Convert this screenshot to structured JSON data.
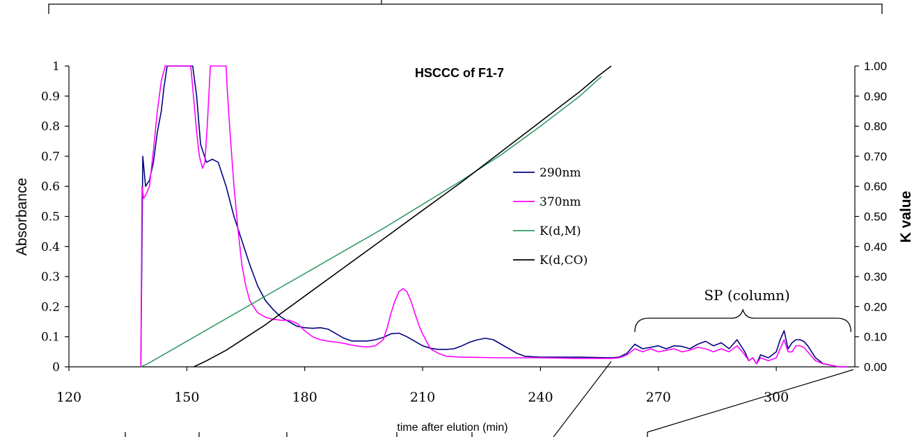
{
  "chart_data": {
    "type": "line",
    "title": "HSCCC of F1-7",
    "xlabel": "time after elution (min)",
    "ylabel": "Absorbance",
    "y2label": "K value",
    "xlim": [
      120,
      320
    ],
    "ylim": [
      0,
      1
    ],
    "y2lim": [
      0,
      1
    ],
    "x_ticks": [
      "120",
      "150",
      "180",
      "210",
      "240",
      "270",
      "300"
    ],
    "y_ticks": [
      "0",
      "0.1",
      "0.2",
      "0.3",
      "0.4",
      "0.5",
      "0.6",
      "0.7",
      "0.8",
      "0.9",
      "1"
    ],
    "y2_ticks": [
      "0.00",
      "0.10",
      "0.20",
      "0.30",
      "0.40",
      "0.50",
      "0.60",
      "0.70",
      "0.80",
      "0.90",
      "1.00"
    ],
    "legend_position": "center-right",
    "grid": false,
    "annotation": "SP (column)",
    "annotation_range": [
      264,
      319
    ],
    "series": [
      {
        "name": "290nm",
        "color": "#000080",
        "axis": "left",
        "x": [
          138.3,
          138.8,
          139.5,
          140.5,
          141.5,
          142.5,
          143.5,
          144.2,
          145,
          146,
          148,
          150,
          150.8,
          151.5,
          152.5,
          153.5,
          155,
          156.5,
          158,
          160,
          162,
          164,
          166,
          168,
          170,
          172,
          174,
          176,
          178,
          180,
          182,
          184,
          186,
          188,
          190,
          192,
          194,
          196,
          198,
          200,
          202,
          204,
          206,
          208,
          210,
          212,
          214,
          216,
          218,
          220,
          222,
          224,
          226,
          228,
          230,
          232,
          234,
          236,
          240,
          250,
          258,
          260,
          262,
          264,
          266,
          268,
          270,
          272,
          274,
          276,
          278,
          280,
          282,
          284,
          286,
          288,
          290,
          292,
          293,
          294,
          295,
          296,
          298,
          300,
          301,
          302,
          303,
          304,
          305,
          306,
          307,
          308,
          310,
          312,
          314,
          316,
          318
        ],
        "y": [
          0.0,
          0.7,
          0.6,
          0.62,
          0.68,
          0.78,
          0.85,
          0.93,
          1.0,
          1.0,
          1.0,
          1.0,
          1.0,
          1.0,
          0.9,
          0.74,
          0.68,
          0.69,
          0.68,
          0.6,
          0.5,
          0.42,
          0.34,
          0.27,
          0.22,
          0.19,
          0.165,
          0.15,
          0.135,
          0.13,
          0.128,
          0.13,
          0.125,
          0.11,
          0.095,
          0.086,
          0.086,
          0.086,
          0.09,
          0.098,
          0.11,
          0.112,
          0.1,
          0.085,
          0.07,
          0.062,
          0.058,
          0.058,
          0.06,
          0.07,
          0.082,
          0.09,
          0.095,
          0.09,
          0.075,
          0.06,
          0.045,
          0.035,
          0.032,
          0.032,
          0.03,
          0.032,
          0.045,
          0.075,
          0.06,
          0.065,
          0.07,
          0.06,
          0.07,
          0.068,
          0.06,
          0.075,
          0.085,
          0.07,
          0.08,
          0.06,
          0.09,
          0.05,
          0.02,
          0.03,
          0.01,
          0.04,
          0.03,
          0.05,
          0.09,
          0.12,
          0.06,
          0.08,
          0.09,
          0.09,
          0.085,
          0.07,
          0.03,
          0.01,
          0.005,
          0.0,
          0.0
        ]
      },
      {
        "name": "370nm",
        "color": "#ff00ff",
        "axis": "left",
        "x": [
          138.3,
          138.6,
          139,
          139.5,
          140.5,
          141.5,
          142.5,
          143.5,
          144.5,
          145.5,
          147,
          150,
          151,
          151.7,
          152.5,
          153.2,
          154,
          154.6,
          155.2,
          156,
          157,
          158.5,
          160,
          160.3,
          161,
          162,
          163,
          164,
          165,
          166,
          167,
          168,
          170,
          172,
          174,
          176,
          178,
          180,
          182,
          184,
          186,
          188,
          190,
          192,
          194,
          196,
          198,
          200,
          201,
          202,
          203,
          204,
          205,
          206,
          207,
          208,
          209,
          210,
          211,
          212,
          214,
          216,
          220,
          230,
          240,
          250,
          258,
          260,
          262,
          264,
          266,
          268,
          270,
          272,
          274,
          276,
          278,
          280,
          282,
          284,
          286,
          288,
          290,
          292,
          293,
          294,
          295,
          296,
          298,
          300,
          301,
          302,
          303,
          304,
          305,
          306,
          307,
          308,
          310,
          312,
          314,
          316,
          318
        ],
        "y": [
          0.0,
          0.6,
          0.56,
          0.57,
          0.6,
          0.72,
          0.85,
          0.95,
          1.0,
          1.0,
          1.0,
          1.0,
          1.0,
          0.9,
          0.78,
          0.7,
          0.66,
          0.68,
          0.8,
          1.0,
          1.0,
          1.0,
          1.0,
          0.92,
          0.78,
          0.6,
          0.46,
          0.34,
          0.27,
          0.22,
          0.2,
          0.18,
          0.165,
          0.158,
          0.155,
          0.155,
          0.145,
          0.12,
          0.1,
          0.09,
          0.085,
          0.082,
          0.078,
          0.072,
          0.068,
          0.066,
          0.07,
          0.09,
          0.13,
          0.18,
          0.22,
          0.25,
          0.26,
          0.25,
          0.22,
          0.18,
          0.14,
          0.11,
          0.085,
          0.06,
          0.045,
          0.035,
          0.032,
          0.03,
          0.03,
          0.028,
          0.028,
          0.03,
          0.04,
          0.06,
          0.05,
          0.06,
          0.05,
          0.055,
          0.06,
          0.05,
          0.055,
          0.065,
          0.06,
          0.05,
          0.06,
          0.05,
          0.07,
          0.04,
          0.02,
          0.03,
          0.01,
          0.03,
          0.02,
          0.03,
          0.06,
          0.09,
          0.05,
          0.05,
          0.07,
          0.07,
          0.065,
          0.05,
          0.02,
          0.01,
          0.005,
          0.0,
          0.0
        ]
      },
      {
        "name": "K(d,M)",
        "color": "#339966",
        "axis": "right",
        "x": [
          138.3,
          140,
          150,
          160,
          170,
          180,
          190,
          200,
          210,
          220,
          230,
          240,
          250,
          255.5
        ],
        "y": [
          0.0,
          0.01,
          0.085,
          0.16,
          0.235,
          0.31,
          0.385,
          0.46,
          0.54,
          0.62,
          0.705,
          0.8,
          0.9,
          0.965
        ]
      },
      {
        "name": "K(d,CO)",
        "color": "#000000",
        "axis": "right",
        "x": [
          151.8,
          155,
          160,
          170,
          180,
          190,
          200,
          210,
          220,
          230,
          240,
          250,
          255,
          258
        ],
        "y": [
          0.0,
          0.02,
          0.055,
          0.14,
          0.235,
          0.33,
          0.425,
          0.52,
          0.615,
          0.715,
          0.815,
          0.915,
          0.97,
          1.0
        ]
      }
    ]
  }
}
